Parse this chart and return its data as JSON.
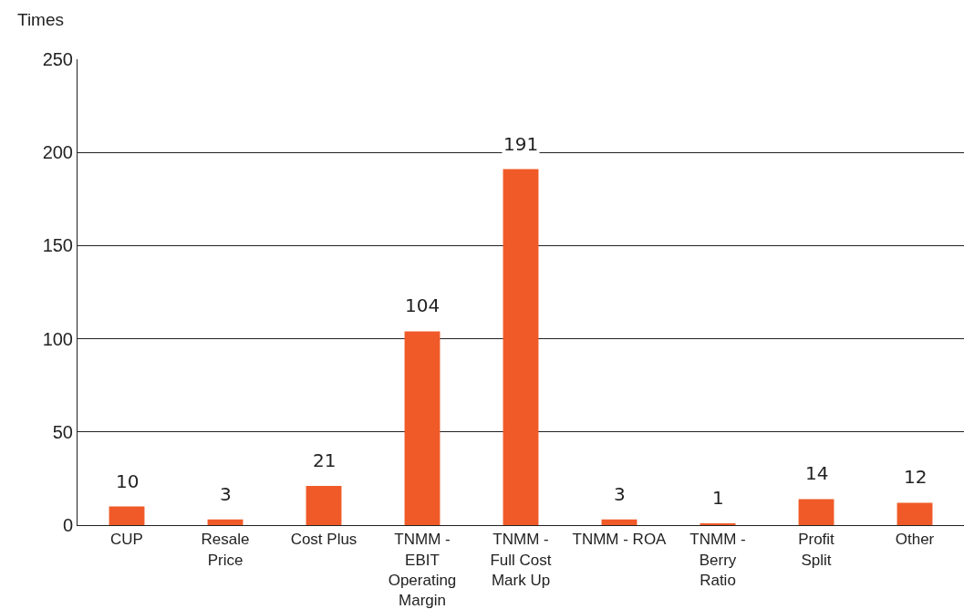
{
  "chart_data": {
    "type": "bar",
    "ylabel": "Times",
    "categories": [
      "CUP",
      "Resale Price",
      "Cost Plus",
      "TNMM - EBIT Operating Margin",
      "TNMM - Full Cost Mark Up",
      "TNMM - ROA",
      "TNMM - Berry Ratio",
      "Profit Split",
      "Other"
    ],
    "values": [
      10,
      3,
      21,
      104,
      191,
      3,
      1,
      14,
      12
    ],
    "color": "#f05a28",
    "ylim": [
      0,
      250
    ],
    "yticks": [
      0,
      50,
      100,
      150,
      200,
      250
    ],
    "grid": "y",
    "data_labels": true
  }
}
